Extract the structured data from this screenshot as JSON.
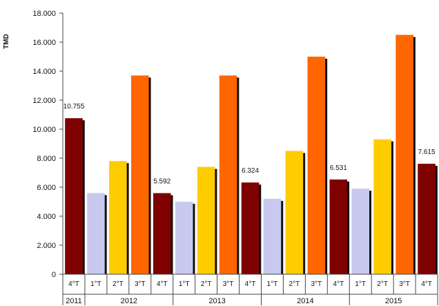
{
  "chart_data": {
    "type": "bar",
    "ylabel": "TMD",
    "ylim": [
      0,
      18000
    ],
    "yticks": [
      0,
      2000,
      4000,
      6000,
      8000,
      10000,
      12000,
      14000,
      16000,
      18000
    ],
    "ytick_labels": [
      "0",
      "2.000",
      "4.000",
      "6.000",
      "8.000",
      "10.000",
      "12.000",
      "14.000",
      "16.000",
      "18.000"
    ],
    "grid": false,
    "legend": "none",
    "colors": {
      "q1": "#c9c9f0",
      "q2": "#ffcc00",
      "q3": "#ff6600",
      "q4": "#7f0000"
    },
    "bars": [
      {
        "year": "2011",
        "quarter": "4°T",
        "value": 10755,
        "label": "10.755"
      },
      {
        "year": "2012",
        "quarter": "1°T",
        "value": 5600,
        "label": ""
      },
      {
        "year": "2012",
        "quarter": "2°T",
        "value": 7800,
        "label": ""
      },
      {
        "year": "2012",
        "quarter": "3°T",
        "value": 13700,
        "label": ""
      },
      {
        "year": "2012",
        "quarter": "4°T",
        "value": 5592,
        "label": "5.592"
      },
      {
        "year": "2013",
        "quarter": "1°T",
        "value": 5000,
        "label": ""
      },
      {
        "year": "2013",
        "quarter": "2°T",
        "value": 7400,
        "label": ""
      },
      {
        "year": "2013",
        "quarter": "3°T",
        "value": 13700,
        "label": ""
      },
      {
        "year": "2013",
        "quarter": "4°T",
        "value": 6324,
        "label": "6.324"
      },
      {
        "year": "2014",
        "quarter": "1°T",
        "value": 5200,
        "label": ""
      },
      {
        "year": "2014",
        "quarter": "2°T",
        "value": 8500,
        "label": ""
      },
      {
        "year": "2014",
        "quarter": "3°T",
        "value": 15000,
        "label": ""
      },
      {
        "year": "2014",
        "quarter": "4°T",
        "value": 6531,
        "label": "6.531"
      },
      {
        "year": "2015",
        "quarter": "1°T",
        "value": 5900,
        "label": ""
      },
      {
        "year": "2015",
        "quarter": "2°T",
        "value": 9300,
        "label": ""
      },
      {
        "year": "2015",
        "quarter": "3°T",
        "value": 16500,
        "label": ""
      },
      {
        "year": "2015",
        "quarter": "4°T",
        "value": 7615,
        "label": "7.615"
      }
    ],
    "years": [
      {
        "label": "2011",
        "count": 1
      },
      {
        "label": "2012",
        "count": 4
      },
      {
        "label": "2013",
        "count": 4
      },
      {
        "label": "2014",
        "count": 4
      },
      {
        "label": "2015",
        "count": 4
      }
    ]
  }
}
